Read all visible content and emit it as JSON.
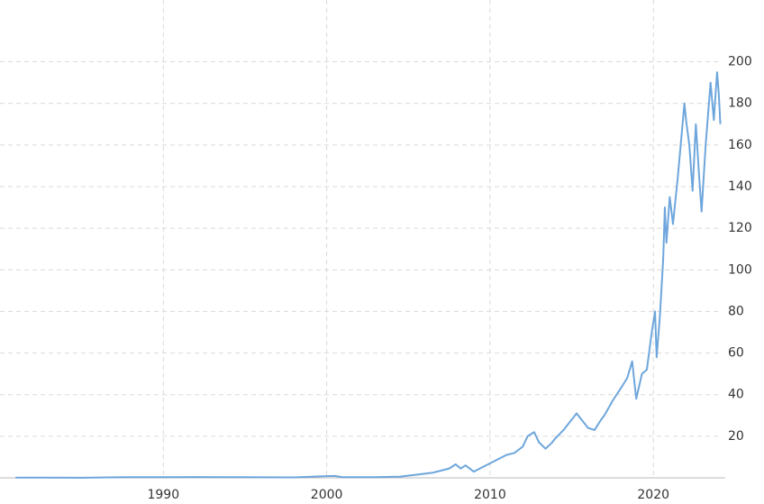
{
  "chart_data": {
    "type": "line",
    "x": [
      1980.95,
      1983,
      1985,
      1987.5,
      1990,
      1992,
      1995,
      1998,
      1999.9,
      2000.5,
      2001,
      2003,
      2004.5,
      2005.5,
      2006.5,
      2007.5,
      2007.9,
      2008.2,
      2008.5,
      2009.0,
      2009.5,
      2010,
      2010.5,
      2011,
      2011.5,
      2012,
      2012.3,
      2012.7,
      2013,
      2013.4,
      2013.8,
      2014,
      2014.5,
      2015,
      2015.3,
      2015.7,
      2016,
      2016.4,
      2016.8,
      2017,
      2017.5,
      2018,
      2018.4,
      2018.7,
      2018.95,
      2019.3,
      2019.6,
      2019.9,
      2020.1,
      2020.2,
      2020.4,
      2020.6,
      2020.7,
      2020.8,
      2021,
      2021.2,
      2021.5,
      2021.9,
      2022.0,
      2022.2,
      2022.4,
      2022.6,
      2022.8,
      2022.95,
      2023.2,
      2023.5,
      2023.7,
      2023.9,
      2024.0,
      2024.1
    ],
    "values": [
      0.1,
      0.1,
      0.08,
      0.3,
      0.3,
      0.4,
      0.3,
      0.2,
      0.8,
      0.9,
      0.3,
      0.3,
      0.6,
      1.5,
      2.5,
      4.5,
      6.5,
      4.5,
      6,
      3,
      5,
      7,
      9,
      11,
      12,
      15,
      20,
      22,
      17,
      14,
      17,
      19,
      23,
      28,
      31,
      27,
      24,
      23,
      28,
      30,
      37,
      43,
      48,
      56,
      38,
      50,
      52,
      70,
      80,
      58,
      78,
      105,
      130,
      113,
      135,
      122,
      145,
      180,
      172,
      160,
      138,
      170,
      145,
      128,
      160,
      190,
      172,
      195,
      185,
      170
    ],
    "color": "#6ea6dc",
    "xlim": [
      1980,
      2024.4
    ],
    "xticks": [
      1990,
      2000,
      2010,
      2020
    ],
    "ylim": [
      0,
      220
    ],
    "yticks": [
      20,
      40,
      60,
      80,
      100,
      120,
      140,
      160,
      180,
      200
    ],
    "grid": true
  }
}
